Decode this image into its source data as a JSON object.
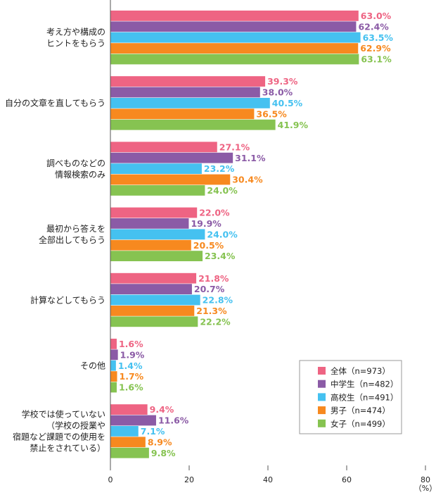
{
  "chart_data": {
    "type": "bar",
    "orientation": "horizontal",
    "categories": [
      [
        "考え方や構成の",
        "ヒントをもらう"
      ],
      [
        "自分の文章を直してもらう"
      ],
      [
        "調べものなどの",
        "情報検索のみ"
      ],
      [
        "最初から答えを",
        "全部出してもらう"
      ],
      [
        "計算などしてもらう"
      ],
      [
        "その他"
      ],
      [
        "学校では使っていない",
        "（学校の授業や",
        "宿題など課題での使用を",
        "禁止をされている）"
      ]
    ],
    "series": [
      {
        "name": "全体（n=973）",
        "color": "#EE6483",
        "values": [
          63.0,
          39.3,
          27.1,
          22.0,
          21.8,
          1.6,
          9.4
        ]
      },
      {
        "name": "中学生（n=482）",
        "color": "#8B5BA6",
        "values": [
          62.4,
          38.0,
          31.1,
          19.9,
          20.7,
          1.9,
          11.6
        ]
      },
      {
        "name": "高校生（n=491）",
        "color": "#45C1F0",
        "values": [
          63.5,
          40.5,
          23.2,
          24.0,
          22.8,
          1.4,
          7.1
        ]
      },
      {
        "name": "男子（n=474）",
        "color": "#F7891F",
        "values": [
          62.9,
          36.5,
          30.4,
          20.5,
          21.3,
          1.7,
          8.9
        ]
      },
      {
        "name": "女子（n=499）",
        "color": "#86C351",
        "values": [
          63.1,
          41.9,
          24.0,
          23.4,
          22.2,
          1.6,
          9.8
        ]
      }
    ],
    "value_suffix": "%",
    "xlim": [
      0,
      80
    ],
    "xticks": [
      "0",
      "20",
      "40",
      "60",
      "80"
    ],
    "xunit": "（%）",
    "grid": false,
    "legend": "bottom-right"
  }
}
